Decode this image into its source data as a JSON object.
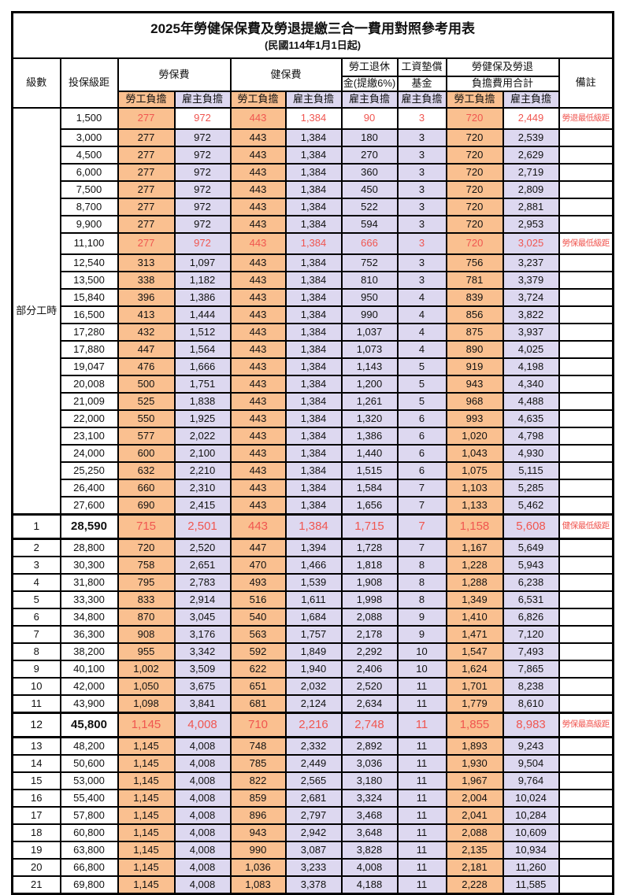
{
  "title": "2025年勞健保保費及勞退提繳三合一費用對照參考用表",
  "subtitle": "(民國114年1月1日起)",
  "colors": {
    "employee_bg": "#FAC090",
    "employer_bg": "#DDD8F0",
    "red_text": "#F05650",
    "border": "#000000"
  },
  "header": {
    "level": "級數",
    "bracket": "投保級距",
    "labor_ins": "勞保費",
    "health_ins": "健保費",
    "pension_l1": "勞工退休",
    "pension_l2": "金(提繳6%)",
    "wage_fund_l1": "工資墊償",
    "wage_fund_l2": "基金",
    "total_l1": "勞健保及勞退",
    "total_l2": "負擔費用合計",
    "employee": "勞工負擔",
    "employer": "雇主負擔",
    "remark": "備註"
  },
  "part_time": {
    "label": "部分工時",
    "rowspan": 23
  },
  "rows": [
    {
      "level": "",
      "bracket": "1,500",
      "values": [
        "277",
        "972",
        "443",
        "1,384",
        "90",
        "3",
        "720",
        "2,449"
      ],
      "remark": "勞退最低級距",
      "style": "redwhite"
    },
    {
      "level": "",
      "bracket": "3,000",
      "values": [
        "277",
        "972",
        "443",
        "1,384",
        "180",
        "3",
        "720",
        "2,539"
      ],
      "remark": "",
      "style": "normal"
    },
    {
      "level": "",
      "bracket": "4,500",
      "values": [
        "277",
        "972",
        "443",
        "1,384",
        "270",
        "3",
        "720",
        "2,629"
      ],
      "remark": "",
      "style": "normal"
    },
    {
      "level": "",
      "bracket": "6,000",
      "values": [
        "277",
        "972",
        "443",
        "1,384",
        "360",
        "3",
        "720",
        "2,719"
      ],
      "remark": "",
      "style": "normal"
    },
    {
      "level": "",
      "bracket": "7,500",
      "values": [
        "277",
        "972",
        "443",
        "1,384",
        "450",
        "3",
        "720",
        "2,809"
      ],
      "remark": "",
      "style": "normal"
    },
    {
      "level": "",
      "bracket": "8,700",
      "values": [
        "277",
        "972",
        "443",
        "1,384",
        "522",
        "3",
        "720",
        "2,881"
      ],
      "remark": "",
      "style": "normal"
    },
    {
      "level": "",
      "bracket": "9,900",
      "values": [
        "277",
        "972",
        "443",
        "1,384",
        "594",
        "3",
        "720",
        "2,953"
      ],
      "remark": "",
      "style": "normal"
    },
    {
      "level": "",
      "bracket": "11,100",
      "values": [
        "277",
        "972",
        "443",
        "1,384",
        "666",
        "3",
        "720",
        "3,025"
      ],
      "remark": "勞保最低級距",
      "style": "red"
    },
    {
      "level": "",
      "bracket": "12,540",
      "values": [
        "313",
        "1,097",
        "443",
        "1,384",
        "752",
        "3",
        "756",
        "3,237"
      ],
      "remark": "",
      "style": "normal"
    },
    {
      "level": "",
      "bracket": "13,500",
      "values": [
        "338",
        "1,182",
        "443",
        "1,384",
        "810",
        "3",
        "781",
        "3,379"
      ],
      "remark": "",
      "style": "normal"
    },
    {
      "level": "",
      "bracket": "15,840",
      "values": [
        "396",
        "1,386",
        "443",
        "1,384",
        "950",
        "4",
        "839",
        "3,724"
      ],
      "remark": "",
      "style": "normal"
    },
    {
      "level": "",
      "bracket": "16,500",
      "values": [
        "413",
        "1,444",
        "443",
        "1,384",
        "990",
        "4",
        "856",
        "3,822"
      ],
      "remark": "",
      "style": "normal"
    },
    {
      "level": "",
      "bracket": "17,280",
      "values": [
        "432",
        "1,512",
        "443",
        "1,384",
        "1,037",
        "4",
        "875",
        "3,937"
      ],
      "remark": "",
      "style": "normal"
    },
    {
      "level": "",
      "bracket": "17,880",
      "values": [
        "447",
        "1,564",
        "443",
        "1,384",
        "1,073",
        "4",
        "890",
        "4,025"
      ],
      "remark": "",
      "style": "normal"
    },
    {
      "level": "",
      "bracket": "19,047",
      "values": [
        "476",
        "1,666",
        "443",
        "1,384",
        "1,143",
        "5",
        "919",
        "4,198"
      ],
      "remark": "",
      "style": "normal"
    },
    {
      "level": "",
      "bracket": "20,008",
      "values": [
        "500",
        "1,751",
        "443",
        "1,384",
        "1,200",
        "5",
        "943",
        "4,340"
      ],
      "remark": "",
      "style": "normal"
    },
    {
      "level": "",
      "bracket": "21,009",
      "values": [
        "525",
        "1,838",
        "443",
        "1,384",
        "1,261",
        "5",
        "968",
        "4,488"
      ],
      "remark": "",
      "style": "normal"
    },
    {
      "level": "",
      "bracket": "22,000",
      "values": [
        "550",
        "1,925",
        "443",
        "1,384",
        "1,320",
        "6",
        "993",
        "4,635"
      ],
      "remark": "",
      "style": "normal"
    },
    {
      "level": "",
      "bracket": "23,100",
      "values": [
        "577",
        "2,022",
        "443",
        "1,384",
        "1,386",
        "6",
        "1,020",
        "4,798"
      ],
      "remark": "",
      "style": "normal"
    },
    {
      "level": "",
      "bracket": "24,000",
      "values": [
        "600",
        "2,100",
        "443",
        "1,384",
        "1,440",
        "6",
        "1,043",
        "4,930"
      ],
      "remark": "",
      "style": "normal"
    },
    {
      "level": "",
      "bracket": "25,250",
      "values": [
        "632",
        "2,210",
        "443",
        "1,384",
        "1,515",
        "6",
        "1,075",
        "5,115"
      ],
      "remark": "",
      "style": "normal"
    },
    {
      "level": "",
      "bracket": "26,400",
      "values": [
        "660",
        "2,310",
        "443",
        "1,384",
        "1,584",
        "7",
        "1,103",
        "5,285"
      ],
      "remark": "",
      "style": "normal"
    },
    {
      "level": "",
      "bracket": "27,600",
      "values": [
        "690",
        "2,415",
        "443",
        "1,384",
        "1,656",
        "7",
        "1,133",
        "5,462"
      ],
      "remark": "",
      "style": "normal"
    },
    {
      "level": "1",
      "bracket": "28,590",
      "values": [
        "715",
        "2,501",
        "443",
        "1,384",
        "1,715",
        "7",
        "1,158",
        "5,608"
      ],
      "remark": "健保最低級距",
      "style": "big"
    },
    {
      "level": "2",
      "bracket": "28,800",
      "values": [
        "720",
        "2,520",
        "447",
        "1,394",
        "1,728",
        "7",
        "1,167",
        "5,649"
      ],
      "remark": "",
      "style": "normal"
    },
    {
      "level": "3",
      "bracket": "30,300",
      "values": [
        "758",
        "2,651",
        "470",
        "1,466",
        "1,818",
        "8",
        "1,228",
        "5,943"
      ],
      "remark": "",
      "style": "normal"
    },
    {
      "level": "4",
      "bracket": "31,800",
      "values": [
        "795",
        "2,783",
        "493",
        "1,539",
        "1,908",
        "8",
        "1,288",
        "6,238"
      ],
      "remark": "",
      "style": "normal"
    },
    {
      "level": "5",
      "bracket": "33,300",
      "values": [
        "833",
        "2,914",
        "516",
        "1,611",
        "1,998",
        "8",
        "1,349",
        "6,531"
      ],
      "remark": "",
      "style": "normal"
    },
    {
      "level": "6",
      "bracket": "34,800",
      "values": [
        "870",
        "3,045",
        "540",
        "1,684",
        "2,088",
        "9",
        "1,410",
        "6,826"
      ],
      "remark": "",
      "style": "normal"
    },
    {
      "level": "7",
      "bracket": "36,300",
      "values": [
        "908",
        "3,176",
        "563",
        "1,757",
        "2,178",
        "9",
        "1,471",
        "7,120"
      ],
      "remark": "",
      "style": "normal"
    },
    {
      "level": "8",
      "bracket": "38,200",
      "values": [
        "955",
        "3,342",
        "592",
        "1,849",
        "2,292",
        "10",
        "1,547",
        "7,493"
      ],
      "remark": "",
      "style": "normal"
    },
    {
      "level": "9",
      "bracket": "40,100",
      "values": [
        "1,002",
        "3,509",
        "622",
        "1,940",
        "2,406",
        "10",
        "1,624",
        "7,865"
      ],
      "remark": "",
      "style": "normal"
    },
    {
      "level": "10",
      "bracket": "42,000",
      "values": [
        "1,050",
        "3,675",
        "651",
        "2,032",
        "2,520",
        "11",
        "1,701",
        "8,238"
      ],
      "remark": "",
      "style": "normal"
    },
    {
      "level": "11",
      "bracket": "43,900",
      "values": [
        "1,098",
        "3,841",
        "681",
        "2,124",
        "2,634",
        "11",
        "1,779",
        "8,610"
      ],
      "remark": "",
      "style": "normal"
    },
    {
      "level": "12",
      "bracket": "45,800",
      "values": [
        "1,145",
        "4,008",
        "710",
        "2,216",
        "2,748",
        "11",
        "1,855",
        "8,983"
      ],
      "remark": "勞保最高級距",
      "style": "big"
    },
    {
      "level": "13",
      "bracket": "48,200",
      "values": [
        "1,145",
        "4,008",
        "748",
        "2,332",
        "2,892",
        "11",
        "1,893",
        "9,243"
      ],
      "remark": "",
      "style": "normal"
    },
    {
      "level": "14",
      "bracket": "50,600",
      "values": [
        "1,145",
        "4,008",
        "785",
        "2,449",
        "3,036",
        "11",
        "1,930",
        "9,504"
      ],
      "remark": "",
      "style": "normal"
    },
    {
      "level": "15",
      "bracket": "53,000",
      "values": [
        "1,145",
        "4,008",
        "822",
        "2,565",
        "3,180",
        "11",
        "1,967",
        "9,764"
      ],
      "remark": "",
      "style": "normal"
    },
    {
      "level": "16",
      "bracket": "55,400",
      "values": [
        "1,145",
        "4,008",
        "859",
        "2,681",
        "3,324",
        "11",
        "2,004",
        "10,024"
      ],
      "remark": "",
      "style": "normal"
    },
    {
      "level": "17",
      "bracket": "57,800",
      "values": [
        "1,145",
        "4,008",
        "896",
        "2,797",
        "3,468",
        "11",
        "2,041",
        "10,284"
      ],
      "remark": "",
      "style": "normal"
    },
    {
      "level": "18",
      "bracket": "60,800",
      "values": [
        "1,145",
        "4,008",
        "943",
        "2,942",
        "3,648",
        "11",
        "2,088",
        "10,609"
      ],
      "remark": "",
      "style": "normal"
    },
    {
      "level": "19",
      "bracket": "63,800",
      "values": [
        "1,145",
        "4,008",
        "990",
        "3,087",
        "3,828",
        "11",
        "2,135",
        "10,934"
      ],
      "remark": "",
      "style": "normal"
    },
    {
      "level": "20",
      "bracket": "66,800",
      "values": [
        "1,145",
        "4,008",
        "1,036",
        "3,233",
        "4,008",
        "11",
        "2,181",
        "11,260"
      ],
      "remark": "",
      "style": "normal"
    },
    {
      "level": "21",
      "bracket": "69,800",
      "values": [
        "1,145",
        "4,008",
        "1,083",
        "3,378",
        "4,188",
        "11",
        "2,228",
        "11,585"
      ],
      "remark": "",
      "style": "normal"
    }
  ]
}
